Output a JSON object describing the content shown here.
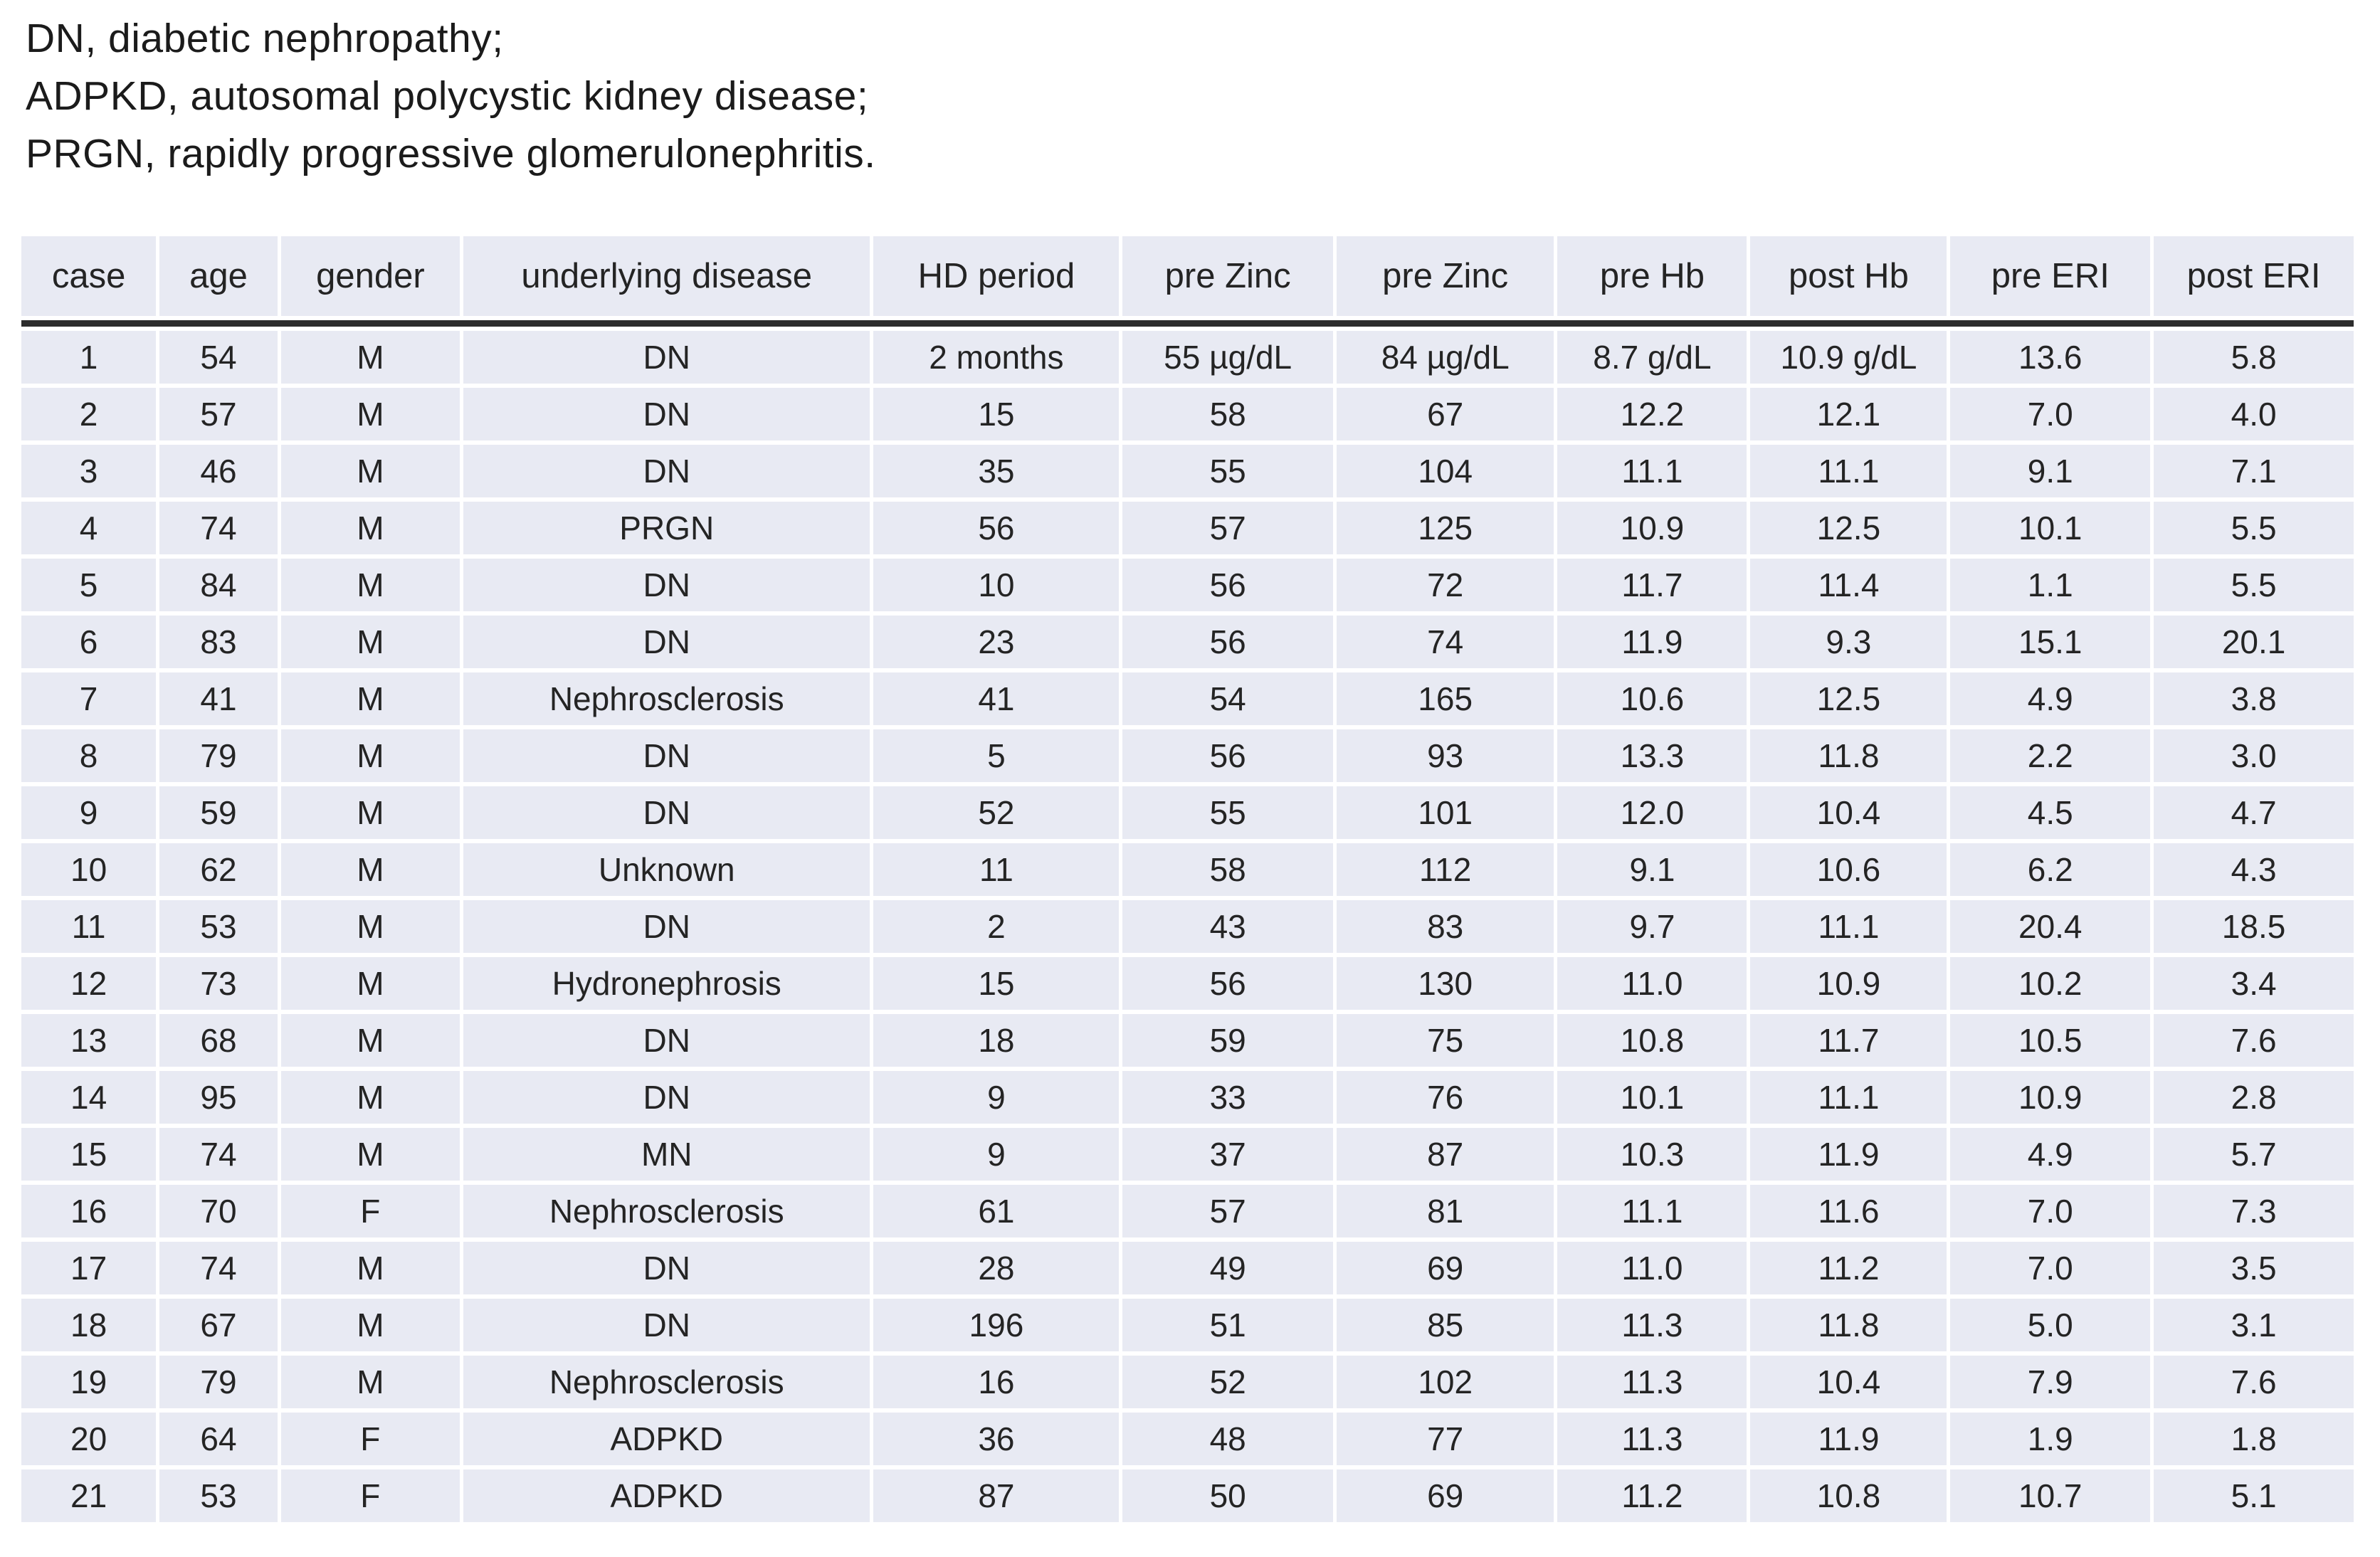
{
  "notes": {
    "lines": [
      "DN, diabetic nephropathy;",
      "ADPKD, autosomal polycystic kidney disease;",
      "PRGN, rapidly progressive glomerulonephritis."
    ]
  },
  "table": {
    "columns": [
      "case",
      "age",
      "gender",
      "underlying disease",
      "HD period",
      "pre Zinc",
      "pre Zinc",
      "pre Hb",
      "post Hb",
      "pre ERI",
      "post ERI"
    ],
    "rows": [
      [
        "1",
        "54",
        "M",
        "DN",
        "2 months",
        "55 µg/dL",
        "84 µg/dL",
        "8.7 g/dL",
        "10.9 g/dL",
        "13.6",
        "5.8"
      ],
      [
        "2",
        "57",
        "M",
        "DN",
        "15",
        "58",
        "67",
        "12.2",
        "12.1",
        "7.0",
        "4.0"
      ],
      [
        "3",
        "46",
        "M",
        "DN",
        "35",
        "55",
        "104",
        "11.1",
        "11.1",
        "9.1",
        "7.1"
      ],
      [
        "4",
        "74",
        "M",
        "PRGN",
        "56",
        "57",
        "125",
        "10.9",
        "12.5",
        "10.1",
        "5.5"
      ],
      [
        "5",
        "84",
        "M",
        "DN",
        "10",
        "56",
        "72",
        "11.7",
        "11.4",
        "1.1",
        "5.5"
      ],
      [
        "6",
        "83",
        "M",
        "DN",
        "23",
        "56",
        "74",
        "11.9",
        "9.3",
        "15.1",
        "20.1"
      ],
      [
        "7",
        "41",
        "M",
        "Nephrosclerosis",
        "41",
        "54",
        "165",
        "10.6",
        "12.5",
        "4.9",
        "3.8"
      ],
      [
        "8",
        "79",
        "M",
        "DN",
        "5",
        "56",
        "93",
        "13.3",
        "11.8",
        "2.2",
        "3.0"
      ],
      [
        "9",
        "59",
        "M",
        "DN",
        "52",
        "55",
        "101",
        "12.0",
        "10.4",
        "4.5",
        "4.7"
      ],
      [
        "10",
        "62",
        "M",
        "Unknown",
        "11",
        "58",
        "112",
        "9.1",
        "10.6",
        "6.2",
        "4.3"
      ],
      [
        "11",
        "53",
        "M",
        "DN",
        "2",
        "43",
        "83",
        "9.7",
        "11.1",
        "20.4",
        "18.5"
      ],
      [
        "12",
        "73",
        "M",
        "Hydronephrosis",
        "15",
        "56",
        "130",
        "11.0",
        "10.9",
        "10.2",
        "3.4"
      ],
      [
        "13",
        "68",
        "M",
        "DN",
        "18",
        "59",
        "75",
        "10.8",
        "11.7",
        "10.5",
        "7.6"
      ],
      [
        "14",
        "95",
        "M",
        "DN",
        "9",
        "33",
        "76",
        "10.1",
        "11.1",
        "10.9",
        "2.8"
      ],
      [
        "15",
        "74",
        "M",
        "MN",
        "9",
        "37",
        "87",
        "10.3",
        "11.9",
        "4.9",
        "5.7"
      ],
      [
        "16",
        "70",
        "F",
        "Nephrosclerosis",
        "61",
        "57",
        "81",
        "11.1",
        "11.6",
        "7.0",
        "7.3"
      ],
      [
        "17",
        "74",
        "M",
        "DN",
        "28",
        "49",
        "69",
        "11.0",
        "11.2",
        "7.0",
        "3.5"
      ],
      [
        "18",
        "67",
        "M",
        "DN",
        "196",
        "51",
        "85",
        "11.3",
        "11.8",
        "5.0",
        "3.1"
      ],
      [
        "19",
        "79",
        "M",
        "Nephrosclerosis",
        "16",
        "52",
        "102",
        "11.3",
        "10.4",
        "7.9",
        "7.6"
      ],
      [
        "20",
        "64",
        "F",
        "ADPKD",
        "36",
        "48",
        "77",
        "11.3",
        "11.9",
        "1.9",
        "1.8"
      ],
      [
        "21",
        "53",
        "F",
        "ADPKD",
        "87",
        "50",
        "69",
        "11.2",
        "10.8",
        "10.7",
        "5.1"
      ]
    ]
  },
  "colors": {
    "cell_bg": "#e8eaf3",
    "header_rule": "#2c2c2c",
    "text": "#242424"
  }
}
